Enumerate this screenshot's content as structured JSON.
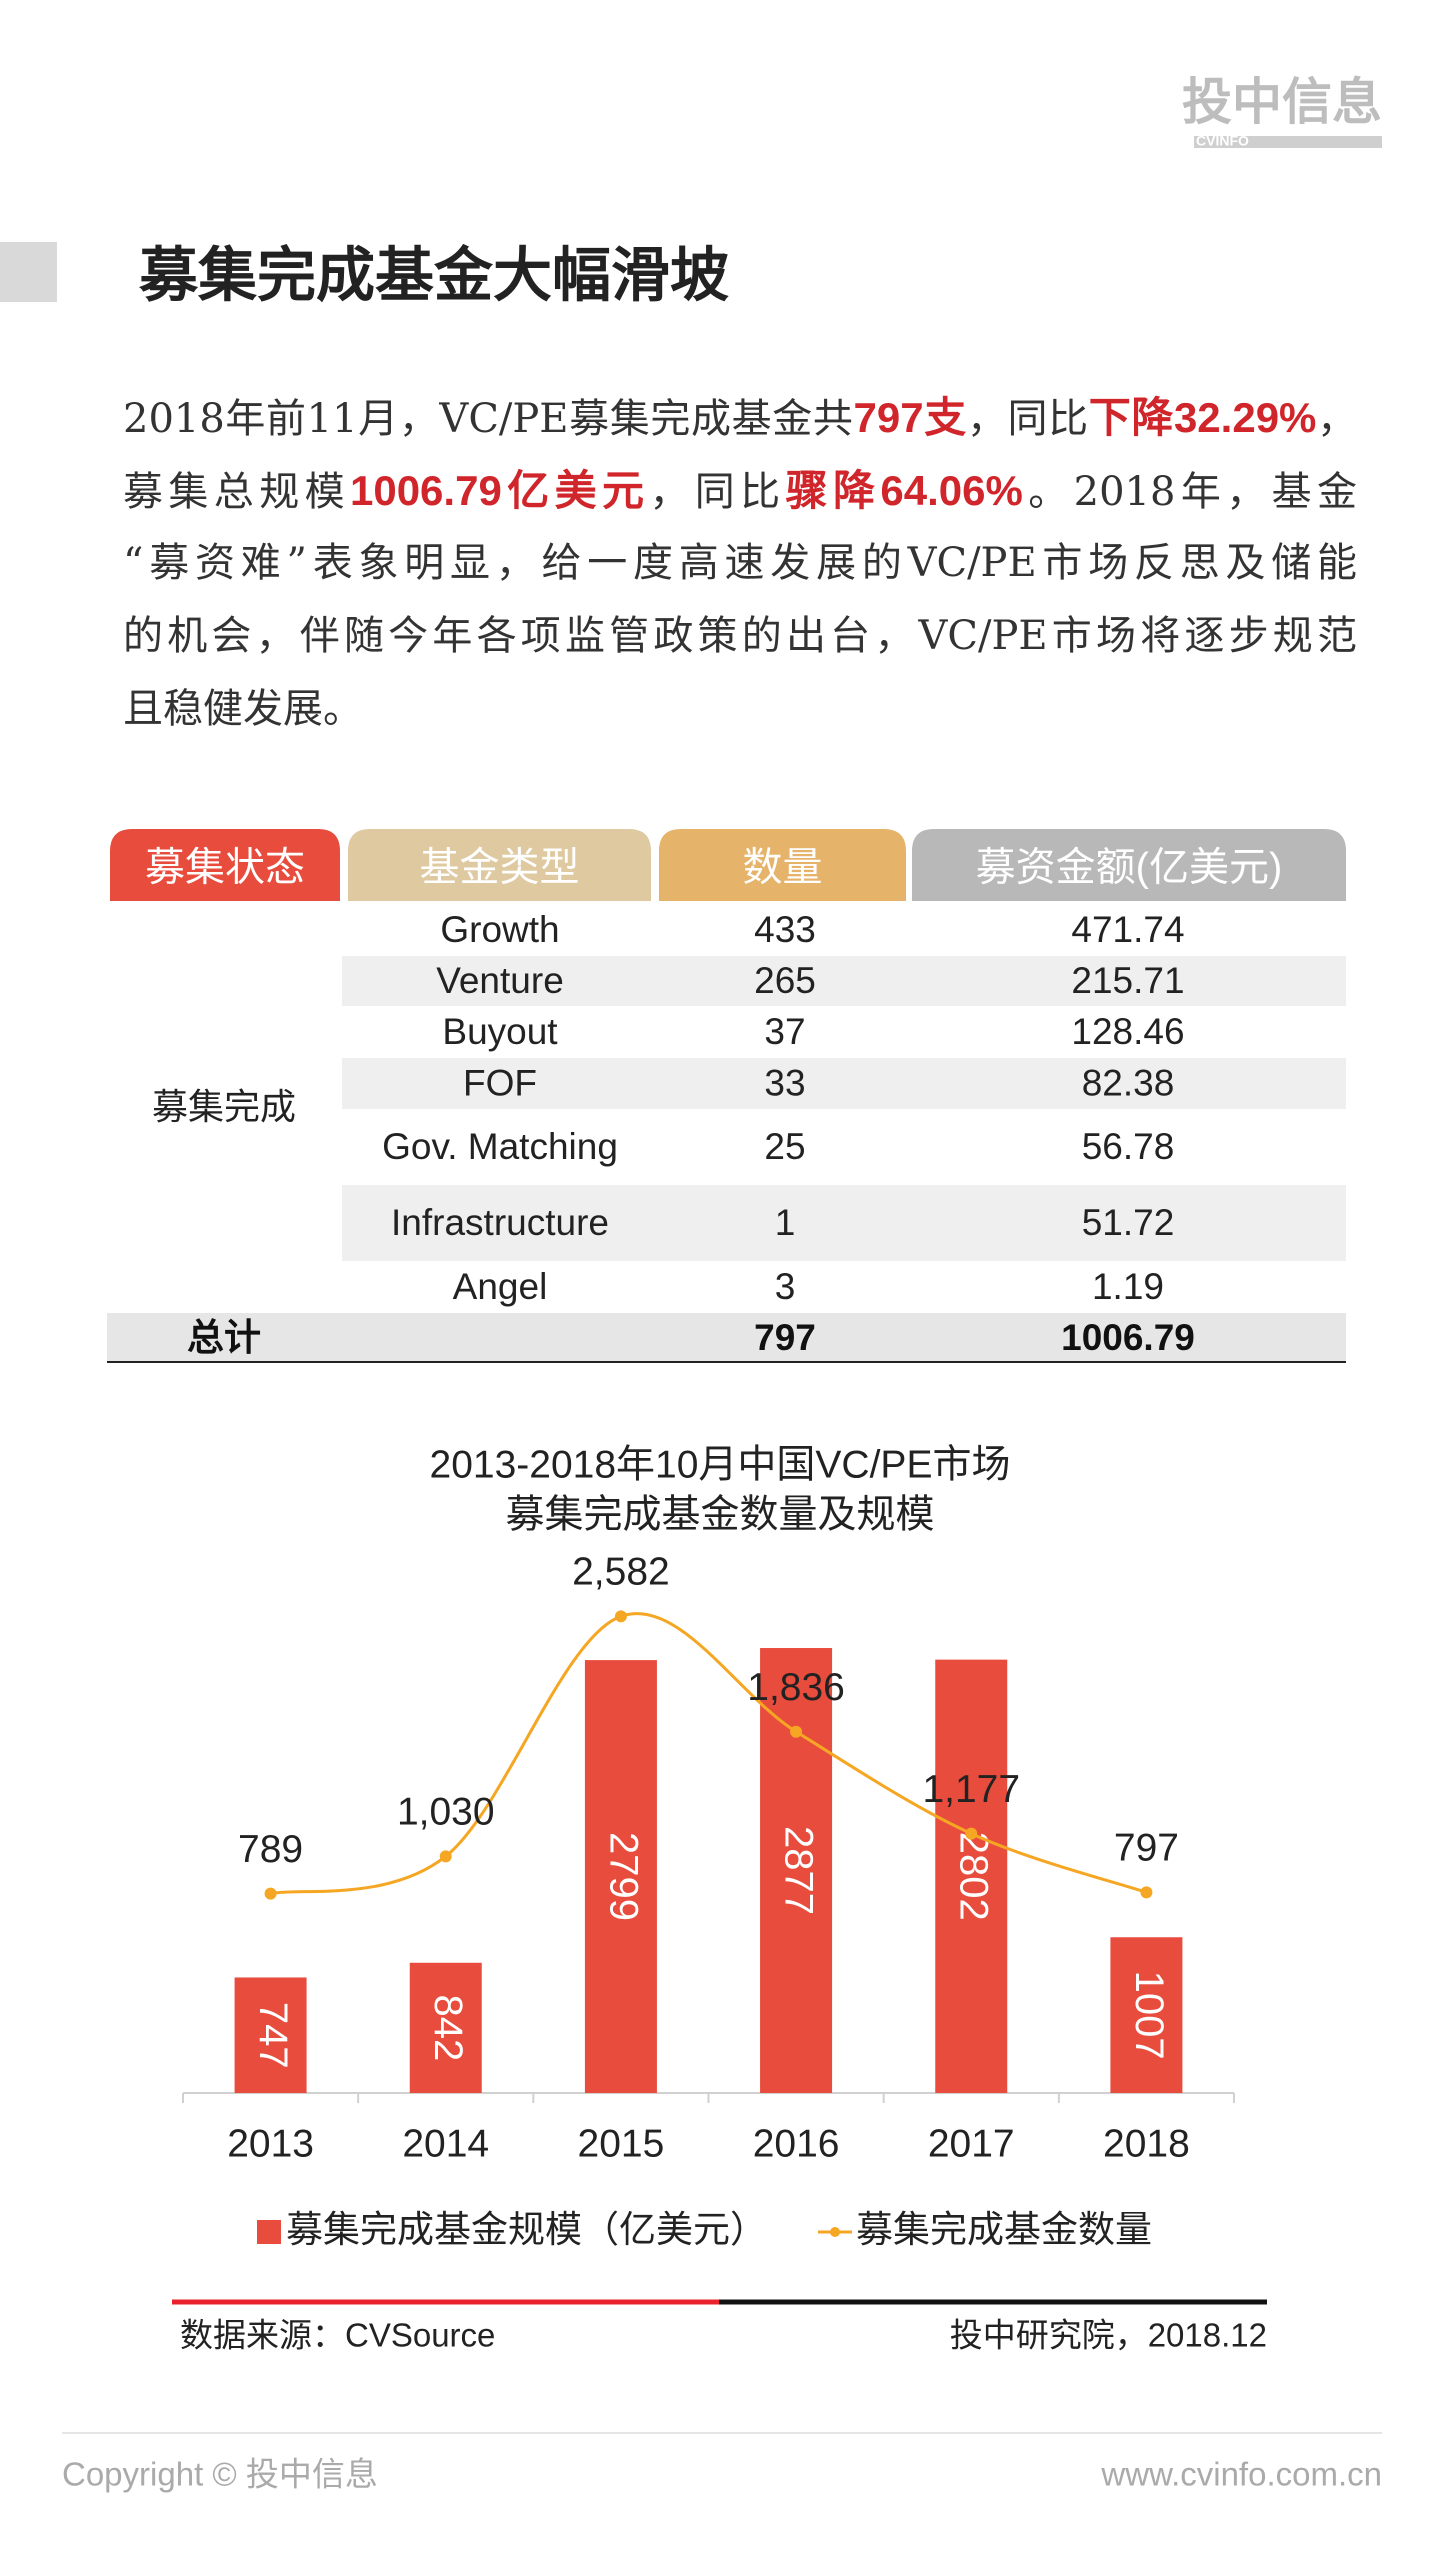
{
  "header": {
    "logo": "投中信息",
    "logo_sub": "CVINFO",
    "title": "募集完成基金大幅滑坡"
  },
  "paragraph": [
    [
      {
        "text": "2018年前11月，VC/PE募集完成基金共"
      },
      {
        "text": "797支",
        "emphasis": true
      },
      {
        "text": "，同比"
      },
      {
        "text": "下降32.29%",
        "emphasis": true
      },
      {
        "text": "，"
      }
    ],
    [
      {
        "text": "募集总规模"
      },
      {
        "text": "1006.79亿美元",
        "emphasis": true
      },
      {
        "text": "，同比"
      },
      {
        "text": "骤降64.06%",
        "emphasis": true
      },
      {
        "text": "。2018年，基金"
      }
    ],
    [
      {
        "text": "“募资难”表象明显，给一度高速发展的VC/PE市场反思及储能"
      }
    ],
    [
      {
        "text": "的机会，伴随今年各项监管政策的出台，VC/PE市场将逐步规范"
      }
    ],
    [
      {
        "text": "且稳健发展。"
      }
    ]
  ],
  "table": {
    "header": [
      "募集状态",
      "基金类型",
      "数量",
      "募资金额(亿美元)"
    ],
    "status": "募集完成",
    "rows": [
      {
        "type": "Growth",
        "count": 433,
        "amount": 471.74
      },
      {
        "type": "Venture",
        "count": 265,
        "amount": 215.71
      },
      {
        "type": "Buyout",
        "count": 37,
        "amount": 128.46
      },
      {
        "type": "FOF",
        "count": 33,
        "amount": 82.38
      },
      {
        "type": "Gov. Matching",
        "count": 25,
        "amount": 56.78
      },
      {
        "type": "Infrastructure",
        "count": 1,
        "amount": 51.72
      },
      {
        "type": "Angel",
        "count": 3,
        "amount": 1.19
      }
    ],
    "total": {
      "label": "总计",
      "count": 797,
      "amount": 1006.79
    }
  },
  "chart_data": {
    "type": "bar-line",
    "title": "2013-2018年10月中国VC/PE市场",
    "subtitle": "募集完成基金数量及规模",
    "categories": [
      "2013",
      "2014",
      "2015",
      "2016",
      "2017",
      "2018"
    ],
    "ylim": [
      0,
      3000
    ],
    "y2lim": [
      -500,
      2500
    ],
    "series": [
      {
        "name": "募集完成基金规模（亿美元）",
        "type": "bar",
        "color": "#e84c3d",
        "values": [
          747,
          842,
          2799,
          2877,
          2802,
          1007
        ]
      },
      {
        "name": "募集完成基金数量",
        "type": "line",
        "axis": "y2",
        "color": "#f5a623",
        "values": [
          789,
          1030,
          2582,
          1836,
          1177,
          797
        ],
        "value_labels": [
          "789",
          "1,030",
          "2,582",
          "1,836",
          "1,177",
          "797"
        ]
      }
    ]
  },
  "footer": {
    "source": "数据来源：CVSource",
    "publisher": "投中研究院，2018.12",
    "copyright": "Copyright © 投中信息",
    "website": "www.cvinfo.com.cn"
  }
}
